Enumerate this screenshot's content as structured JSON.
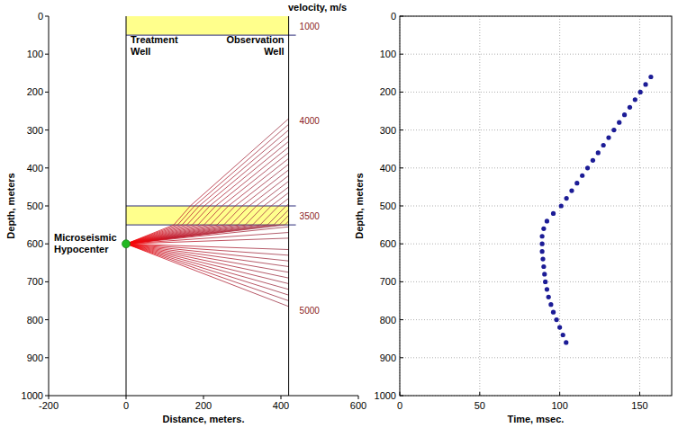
{
  "chart_data": [
    {
      "type": "ray_diagram",
      "xlabel": "Distance, meters.",
      "ylabel": "Depth, meters",
      "velocity_title": "velocity, m/s",
      "xlim": [
        -200,
        600
      ],
      "ylim": [
        1000,
        0
      ],
      "xticks": [
        -200,
        0,
        200,
        400,
        600
      ],
      "yticks": [
        0,
        100,
        200,
        300,
        400,
        500,
        600,
        700,
        800,
        900,
        1000
      ],
      "layers": [
        {
          "top": 0,
          "bottom": 50,
          "velocity": 1000,
          "color": "#ffff8c"
        },
        {
          "top": 50,
          "bottom": 500,
          "velocity": 4000
        },
        {
          "top": 500,
          "bottom": 550,
          "velocity": 3500,
          "color": "#ffff8c"
        },
        {
          "top": 550,
          "bottom": 1000,
          "velocity": 5000
        }
      ],
      "wells": [
        {
          "label": "Treatment Well",
          "x": 0
        },
        {
          "label": "Observation Well",
          "x": 420
        }
      ],
      "source": {
        "label": "Microseismic Hypocenter",
        "x": 0,
        "depth": 600,
        "color": "#22b822"
      },
      "receiver_depths": [
        270,
        285,
        300,
        315,
        330,
        345,
        360,
        375,
        390,
        405,
        420,
        435,
        450,
        465,
        480,
        495,
        510,
        525,
        540,
        555,
        570,
        585,
        600,
        615,
        630,
        645,
        660,
        675,
        690,
        705,
        720,
        735,
        750,
        765
      ]
    },
    {
      "type": "scatter",
      "xlabel": "Time, msec.",
      "ylabel": "Depth, meters",
      "xlim": [
        0,
        170
      ],
      "ylim": [
        1000,
        0
      ],
      "xticks": [
        0,
        50,
        100,
        150
      ],
      "yticks": [
        0,
        100,
        200,
        300,
        400,
        500,
        600,
        700,
        800,
        900,
        1000
      ],
      "grid": true,
      "color": "#1c1c96",
      "marker": "circle",
      "x": [
        157,
        153.7,
        150.4,
        147.1,
        143.8,
        140.5,
        137.2,
        133.9,
        130.6,
        127.3,
        124,
        120.7,
        117.4,
        114.1,
        110.8,
        107.5,
        104.2,
        100.9,
        96,
        92,
        90,
        89,
        89,
        89,
        89.5,
        90,
        90.5,
        91,
        92,
        93,
        94.5,
        96,
        98,
        100,
        102,
        104
      ],
      "values": [
        160,
        180,
        200,
        220,
        240,
        260,
        280,
        300,
        320,
        340,
        360,
        380,
        400,
        420,
        440,
        460,
        480,
        500,
        520,
        540,
        560,
        580,
        600,
        620,
        640,
        660,
        680,
        700,
        720,
        740,
        760,
        780,
        800,
        820,
        840,
        860
      ]
    }
  ]
}
